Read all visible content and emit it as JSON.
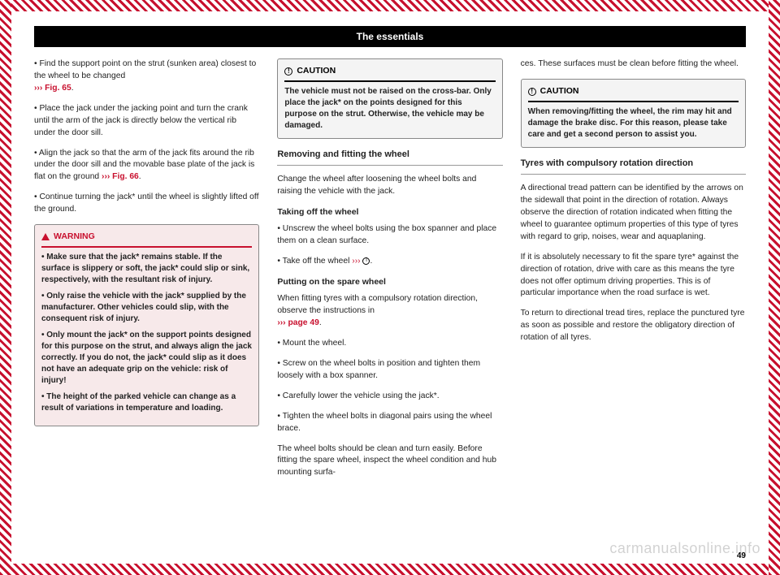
{
  "header": {
    "title": "The essentials"
  },
  "col1": {
    "p1": "Find the support point on the strut (sunken area) closest to the wheel to be changed",
    "p1_ref": "››› Fig. 65",
    "p2": "Place the jack under the jacking point and turn the crank until the arm of the jack is directly below the vertical rib under the door sill.",
    "p3": "Align the jack so that the arm of the jack fits around the rib under the door sill and the movable base plate of the jack is flat on the ground ",
    "p3_ref": "››› Fig. 66",
    "p4": "Continue turning the jack* until the wheel is slightly lifted off the ground.",
    "warning_label": "WARNING",
    "w1": "Make sure that the jack* remains stable. If the surface is slippery or soft, the jack* could slip or sink, respectively, with the resultant risk of injury.",
    "w2": "Only raise the vehicle with the jack* supplied by the manufacturer. Other vehicles could slip, with the consequent risk of injury.",
    "w3": "Only mount the jack* on the support points designed for this purpose on the strut, and always align the jack correctly. If you do not, the jack* could slip as it does not have an adequate grip on the vehicle: risk of injury!",
    "w4": "The height of the parked vehicle can change as a result of variations in temperature and loading."
  },
  "col2": {
    "caution_label": "CAUTION",
    "c1": "The vehicle must not be raised on the cross-bar. Only place the jack* on the points designed for this purpose on the strut. Otherwise, the vehicle may be damaged.",
    "h1": "Removing and fitting the wheel",
    "p1": "Change the wheel after loosening the wheel bolts and raising the vehicle with the jack.",
    "sh1": "Taking off the wheel",
    "p2": "Unscrew the wheel bolts using the box spanner and place them on a clean surface.",
    "p3a": "Take off the wheel ",
    "p3_ref": "›››",
    "sh2": "Putting on the spare wheel",
    "p4a": "When fitting tyres with a compulsory rotation direction, observe the instructions in",
    "p4_ref": "››› page 49",
    "p5": "Mount the wheel.",
    "p6": "Screw on the wheel bolts in position and tighten them loosely with a box spanner.",
    "p7": "Carefully lower the vehicle using the jack*.",
    "p8": "Tighten the wheel bolts in diagonal pairs using the wheel brace.",
    "p9": "The wheel bolts should be clean and turn easily. Before fitting the spare wheel, inspect the wheel condition and hub mounting surfa-"
  },
  "col3": {
    "p1": "ces. These surfaces must be clean before fitting the wheel.",
    "caution_label": "CAUTION",
    "c1": "When removing/fitting the wheel, the rim may hit and damage the brake disc. For this reason, please take care and get a second person to assist you.",
    "h1": "Tyres with compulsory rotation direction",
    "p2": "A directional tread pattern can be identified by the arrows on the sidewall that point in the direction of rotation. Always observe the direction of rotation indicated when fitting the wheel to guarantee optimum properties of this type of tyres with regard to grip, noises, wear and aquaplaning.",
    "p3": "If it is absolutely necessary to fit the spare tyre* against the direction of rotation, drive with care as this means the tyre does not offer optimum driving properties. This is of particular importance when the road surface is wet.",
    "p4": "To return to directional tread tires, replace the punctured tyre as soon as possible and restore the obligatory direction of rotation of all tyres."
  },
  "pagenum": "49",
  "watermark": "carmanualsonline.info",
  "colors": {
    "brand_red": "#c8102e",
    "black": "#000000",
    "white": "#ffffff",
    "warning_bg": "#f7e9ea",
    "caution_bg": "#f4f4f4",
    "border_gray": "#888888"
  }
}
